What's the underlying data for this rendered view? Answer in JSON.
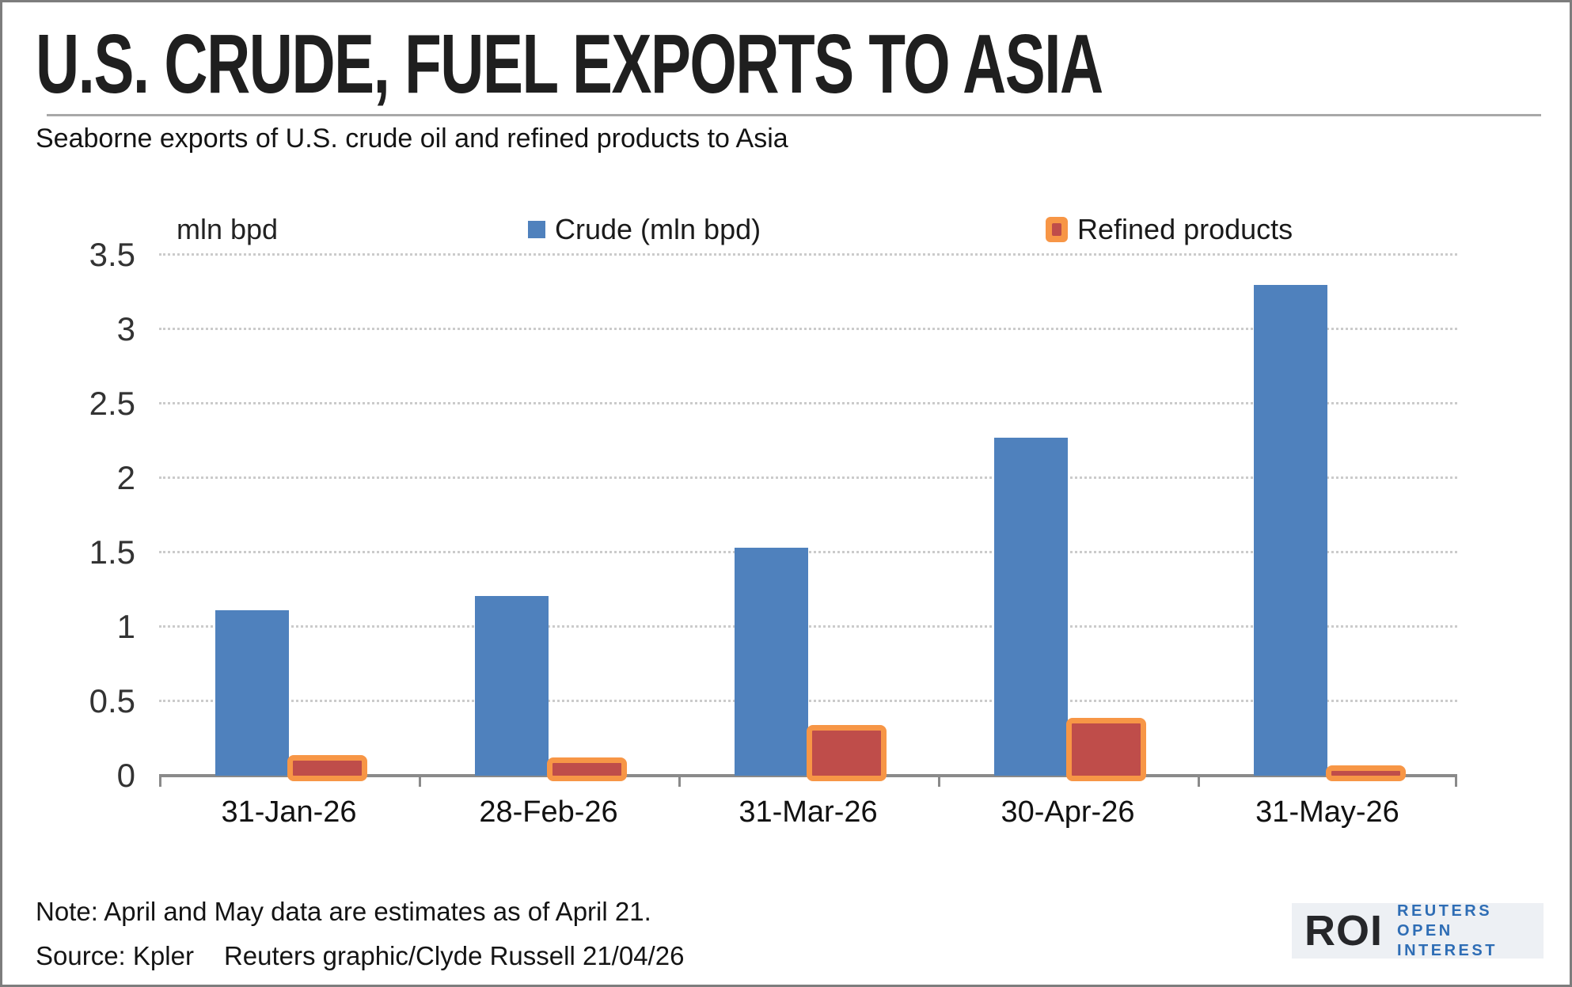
{
  "header": {
    "title": "U.S. CRUDE, FUEL EXPORTS TO ASIA",
    "subtitle": "Seaborne exports of U.S. crude oil and refined products to Asia"
  },
  "chart_data": {
    "type": "bar",
    "categories": [
      "31-Jan-26",
      "28-Feb-26",
      "31-Mar-26",
      "30-Apr-26",
      "31-May-26"
    ],
    "series": [
      {
        "name": "Crude (mln bpd)",
        "values": [
          1.11,
          1.21,
          1.53,
          2.27,
          3.3
        ],
        "color": "#4f81bd"
      },
      {
        "name": "Refined products",
        "values": [
          0.14,
          0.12,
          0.34,
          0.39,
          0.07
        ],
        "fill_color": "#bf4d4a",
        "border_color": "#f79646"
      }
    ],
    "unit_label": "mln bpd",
    "ylim": [
      0,
      3.5
    ],
    "yticks": [
      "0",
      "0.5",
      "1",
      "1.5",
      "2",
      "2.5",
      "3",
      "3.5"
    ],
    "grid": "horizontal-dotted",
    "grid_color": "#cbcbcb",
    "axis_color": "#8a8a8a",
    "legend_position": "top"
  },
  "footer": {
    "note": "Note: April and May data are estimates as of April 21.",
    "source": "Source: Kpler",
    "credit": "Reuters graphic/Clyde Russell 21/04/26"
  },
  "logo": {
    "abbr": "ROI",
    "line1": "REUTERS OPEN",
    "line2": "INTEREST"
  }
}
